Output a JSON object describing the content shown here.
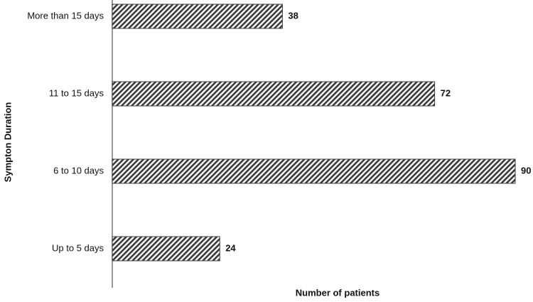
{
  "chart_data": {
    "type": "bar",
    "orientation": "horizontal",
    "x_label": "Number of patients",
    "y_label": "Sympton Duration",
    "categories": [
      "Up to 5 days",
      "6 to 10 days",
      "11 to 15 days",
      "More than 15 days"
    ],
    "values": [
      24,
      90,
      72,
      38
    ],
    "color": "#3a3a3a"
  }
}
